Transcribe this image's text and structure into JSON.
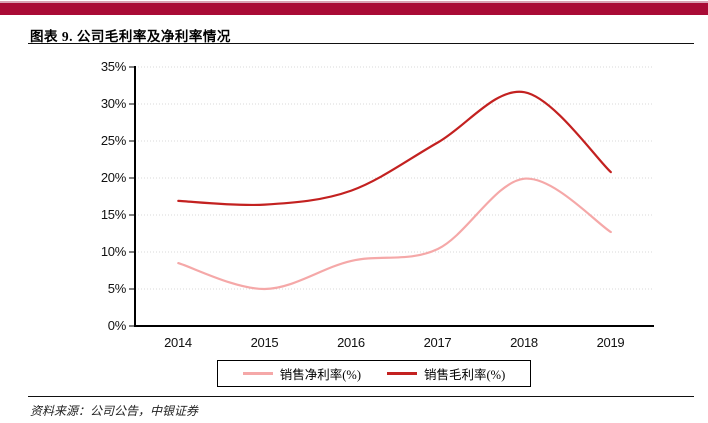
{
  "banner": {
    "color": "#a90b36"
  },
  "header": {
    "title": "图表 9. 公司毛利率及净利率情况"
  },
  "footer": {
    "source": "资料来源：公司公告，中银证券"
  },
  "chart_data": {
    "type": "line",
    "title": "公司毛利率及净利率情况",
    "categories": [
      "2014",
      "2015",
      "2016",
      "2017",
      "2018",
      "2019"
    ],
    "series": [
      {
        "name": "销售净利率(%)",
        "color": "#f5a8a8",
        "values": [
          8.5,
          5.0,
          8.8,
          10.4,
          19.9,
          12.7
        ]
      },
      {
        "name": "销售毛利率(%)",
        "color": "#c32120",
        "values": [
          16.9,
          16.4,
          18.3,
          24.8,
          31.6,
          20.8
        ]
      }
    ],
    "ylim": [
      0,
      35
    ],
    "ytick_step": 5,
    "ytick_labels": [
      "0%",
      "5%",
      "10%",
      "15%",
      "20%",
      "25%",
      "30%",
      "35%"
    ],
    "grid": "horizontal-dotted",
    "legend_position": "bottom",
    "line_style": "smooth"
  }
}
